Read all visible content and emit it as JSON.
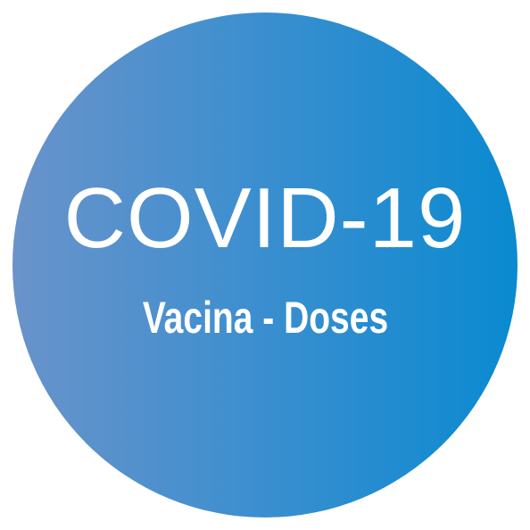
{
  "badge": {
    "title": "COVID-19",
    "subtitle": "Vacina - Doses",
    "colors": {
      "gradient_start": "#6a93ca",
      "gradient_end": "#0a8ad0",
      "text": "#ffffff",
      "background": "#ffffff"
    }
  }
}
